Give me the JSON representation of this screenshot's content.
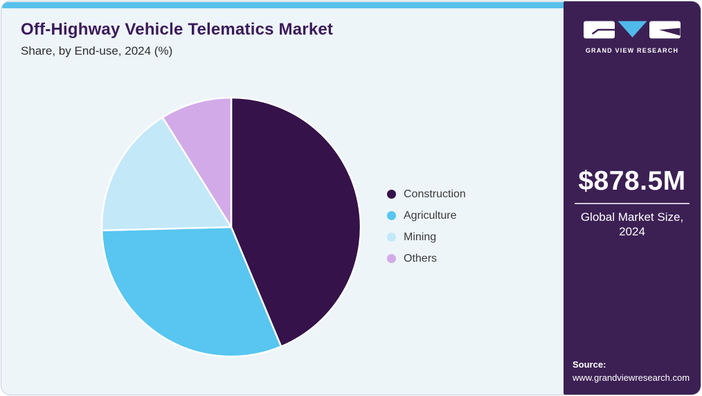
{
  "header": {
    "title": "Off-Highway Vehicle Telematics Market",
    "subtitle": "Share, by End-use, 2024 (%)"
  },
  "chart_data": {
    "type": "pie",
    "title": "Off-Highway Vehicle Telematics Market Share, by End-use, 2024 (%)",
    "unit": "%",
    "start_angle_deg": 0,
    "direction": "clockwise",
    "legend_position": "right",
    "items": [
      {
        "label": "Construction",
        "value": 43.7,
        "color": "#351249"
      },
      {
        "label": "Agriculture",
        "value": 30.9,
        "color": "#58c6f0"
      },
      {
        "label": "Mining",
        "value": 16.5,
        "color": "#c3e8f8"
      },
      {
        "label": "Others",
        "value": 8.9,
        "color": "#d2aae8"
      }
    ]
  },
  "sidebar": {
    "logo": {
      "brand": "GRAND VIEW RESEARCH"
    },
    "metric": {
      "value": "$878.5M",
      "label": "Global Market Size, 2024"
    },
    "source": {
      "label": "Source:",
      "url": "www.grandviewresearch.com"
    }
  },
  "colors": {
    "topbar": "#58c1e9",
    "card_background": "#edf5f9",
    "card_border": "#c7d3da",
    "sidebar_background": "#3c2054",
    "title": "#3c1a5a",
    "body_text": "#2e2e2e",
    "legend_text": "#3a3a3a",
    "logo_v_blue": "#4fb9e9",
    "slice_gap": "#ffffff"
  }
}
